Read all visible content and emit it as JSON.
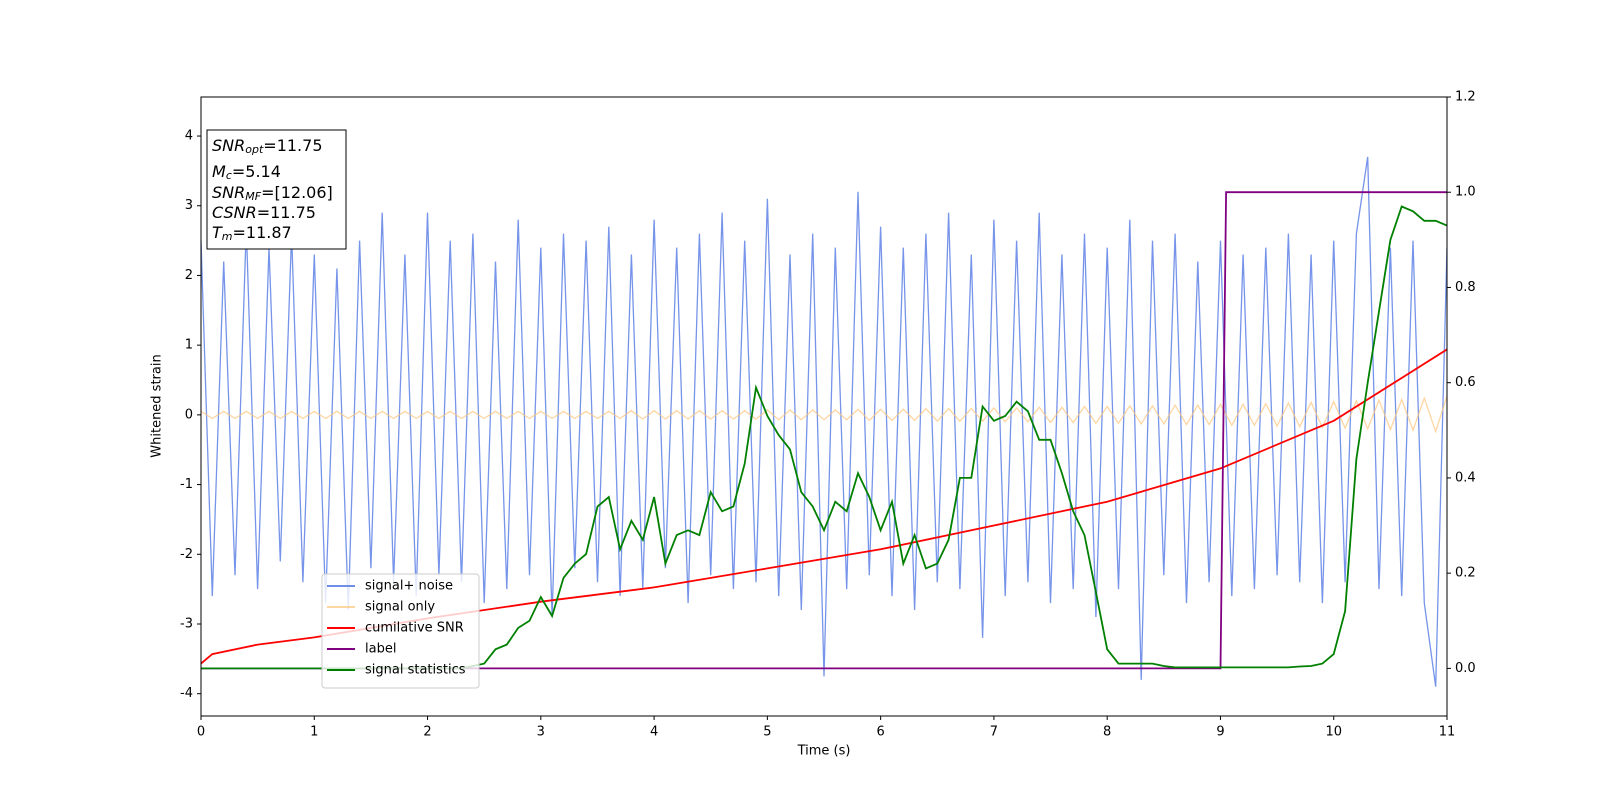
{
  "chart_data": {
    "type": "line",
    "xlabel": "Time (s)",
    "ylabel": "Whitened strain",
    "xlim": [
      0,
      11
    ],
    "xticks": [
      0,
      1,
      2,
      3,
      4,
      5,
      6,
      7,
      8,
      9,
      10,
      11
    ],
    "ylim": [
      -4.32,
      4.56
    ],
    "yticks": [
      -4,
      -3,
      -2,
      -1,
      0,
      1,
      2,
      3,
      4
    ],
    "y2lim": [
      -0.1,
      1.2
    ],
    "y2ticks": [
      {
        "value": 0,
        "label": "0.0"
      },
      0.2,
      0.4,
      0.6,
      0.8,
      {
        "value": 1,
        "label": "1.0"
      },
      1.2
    ],
    "legend": "lower left",
    "annotation": [
      {
        "base": "SNR",
        "sub": "opt",
        "rest": "=11.75"
      },
      {
        "base": "M",
        "sub": "c",
        "rest": "=5.14"
      },
      {
        "base": "SNR",
        "sub": "MF",
        "rest": "=[12.06]"
      },
      {
        "base": "CSNR",
        "sub": "",
        "rest": "=11.75"
      },
      {
        "base": "T",
        "sub": "m",
        "rest": "=11.87"
      }
    ],
    "x": [
      0,
      0.1,
      0.2,
      0.3,
      0.4,
      0.5,
      0.6,
      0.7,
      0.8,
      0.9,
      1,
      1.1,
      1.2,
      1.3,
      1.4,
      1.5,
      1.6,
      1.7,
      1.8,
      1.9,
      2,
      2.1,
      2.2,
      2.3,
      2.4,
      2.5,
      2.6,
      2.7,
      2.8,
      2.9,
      3,
      3.1,
      3.2,
      3.3,
      3.4,
      3.5,
      3.6,
      3.7,
      3.8,
      3.9,
      4,
      4.1,
      4.2,
      4.3,
      4.4,
      4.5,
      4.6,
      4.7,
      4.8,
      4.9,
      5,
      5.1,
      5.2,
      5.3,
      5.4,
      5.5,
      5.6,
      5.7,
      5.8,
      5.9,
      6,
      6.1,
      6.2,
      6.3,
      6.4,
      6.5,
      6.6,
      6.7,
      6.8,
      6.9,
      7,
      7.1,
      7.2,
      7.3,
      7.4,
      7.5,
      7.6,
      7.7,
      7.8,
      7.9,
      8,
      8.1,
      8.2,
      8.3,
      8.4,
      8.5,
      8.6,
      8.7,
      8.8,
      8.9,
      9,
      9.1,
      9.2,
      9.3,
      9.4,
      9.5,
      9.6,
      9.7,
      9.8,
      9.9,
      10,
      10.1,
      10.2,
      10.3,
      10.4,
      10.5,
      10.6,
      10.7,
      10.8,
      10.9,
      11
    ],
    "series": [
      {
        "name": "signal+ noise",
        "color": "#6f8ee8",
        "axis": "y",
        "values": [
          2.5,
          -2.6,
          2.2,
          -2.3,
          2.7,
          -2.5,
          2.4,
          -2.1,
          2.6,
          -2.4,
          2.3,
          -2.7,
          2.1,
          -2.8,
          2.5,
          -2.2,
          2.9,
          -2.4,
          2.3,
          -2.6,
          2.9,
          -2.3,
          2.5,
          -2.4,
          2.6,
          -2.7,
          2.2,
          -2.5,
          2.8,
          -2.3,
          2.4,
          -2.9,
          2.6,
          -2.2,
          2.5,
          -2.4,
          2.7,
          -2.6,
          2.3,
          -2.5,
          2.8,
          -2.2,
          2.4,
          -2.7,
          2.6,
          -2.3,
          2.9,
          -2.5,
          2.5,
          -2.4,
          3.1,
          -2.6,
          2.3,
          -2.8,
          2.6,
          -3.75,
          2.4,
          -2.5,
          3.2,
          -2.3,
          2.7,
          -2.6,
          2.4,
          -2.8,
          2.6,
          -2.4,
          2.9,
          -2.5,
          2.3,
          -3.2,
          2.8,
          -2.6,
          2.5,
          -2.4,
          2.9,
          -2.7,
          2.3,
          -2.5,
          2.6,
          -2.9,
          2.4,
          -2.5,
          2.8,
          -3.8,
          2.5,
          -2.3,
          2.6,
          -2.7,
          2.2,
          -2.4,
          2.5,
          -2.6,
          2.3,
          -2.5,
          2.4,
          -2.3,
          2.6,
          -2.4,
          2.3,
          -2.7,
          2.5,
          -2.4,
          2.6,
          3.7,
          -2.5,
          2.4,
          -2.6,
          2.5,
          -2.7,
          -3.9,
          2.4
        ]
      },
      {
        "name": "signal only",
        "color": "#fdc57a",
        "axis": "y",
        "values": [
          0.05,
          -0.05,
          0.05,
          -0.05,
          0.05,
          -0.05,
          0.05,
          -0.05,
          0.05,
          -0.05,
          0.05,
          -0.05,
          0.05,
          -0.05,
          0.05,
          -0.05,
          0.05,
          -0.05,
          0.05,
          -0.05,
          0.05,
          -0.05,
          0.05,
          -0.05,
          0.05,
          -0.05,
          0.05,
          -0.05,
          0.05,
          -0.05,
          0.05,
          -0.05,
          0.05,
          -0.05,
          0.05,
          -0.05,
          0.05,
          -0.05,
          0.06,
          -0.06,
          0.06,
          -0.06,
          0.06,
          -0.06,
          0.06,
          -0.06,
          0.06,
          -0.06,
          0.06,
          -0.06,
          0.07,
          -0.07,
          0.07,
          -0.07,
          0.07,
          -0.07,
          0.07,
          -0.07,
          0.08,
          -0.08,
          0.08,
          -0.08,
          0.08,
          -0.08,
          0.09,
          -0.09,
          0.09,
          -0.09,
          0.09,
          -0.09,
          0.1,
          -0.1,
          0.1,
          -0.1,
          0.11,
          -0.11,
          0.11,
          -0.11,
          0.12,
          -0.12,
          0.12,
          -0.12,
          0.13,
          -0.13,
          0.13,
          -0.13,
          0.14,
          -0.14,
          0.14,
          -0.14,
          0.15,
          -0.15,
          0.15,
          -0.15,
          0.16,
          -0.16,
          0.17,
          -0.17,
          0.18,
          -0.18,
          0.19,
          -0.19,
          0.2,
          -0.2,
          0.21,
          -0.21,
          0.22,
          -0.22,
          0.24,
          -0.24,
          0.27
        ]
      },
      {
        "name": "cumilative SNR",
        "color": "#ff0000",
        "axis": "y2",
        "x": [
          0,
          0.1,
          0.5,
          1,
          2,
          3,
          4,
          5,
          6,
          7,
          8,
          9,
          10,
          11
        ],
        "values": [
          0.01,
          0.03,
          0.05,
          0.065,
          0.105,
          0.14,
          0.17,
          0.21,
          0.25,
          0.3,
          0.35,
          0.42,
          0.52,
          0.67
        ]
      },
      {
        "name": "label",
        "color": "#800080",
        "axis": "y2",
        "x": [
          0,
          9,
          9.05,
          11
        ],
        "values": [
          0,
          0,
          1,
          1
        ]
      },
      {
        "name": "signal statistics",
        "color": "#008000",
        "axis": "y2",
        "values": [
          0,
          0,
          0,
          0,
          0,
          0,
          0,
          0,
          0,
          0,
          0,
          0,
          0,
          0,
          0,
          0,
          0,
          0,
          0,
          0,
          0,
          0,
          0,
          0,
          0.005,
          0.01,
          0.04,
          0.05,
          0.085,
          0.1,
          0.15,
          0.11,
          0.19,
          0.22,
          0.24,
          0.34,
          0.36,
          0.25,
          0.31,
          0.27,
          0.36,
          0.22,
          0.28,
          0.29,
          0.28,
          0.37,
          0.33,
          0.34,
          0.43,
          0.59,
          0.53,
          0.49,
          0.46,
          0.37,
          0.34,
          0.29,
          0.35,
          0.33,
          0.41,
          0.36,
          0.29,
          0.35,
          0.22,
          0.28,
          0.21,
          0.22,
          0.27,
          0.4,
          0.4,
          0.55,
          0.52,
          0.53,
          0.56,
          0.54,
          0.48,
          0.48,
          0.41,
          0.33,
          0.28,
          0.16,
          0.04,
          0.01,
          0.01,
          0.01,
          0.01,
          0.005,
          0.002,
          0.002,
          0.002,
          0.002,
          0.002,
          0.002,
          0.002,
          0.002,
          0.002,
          0.002,
          0.002,
          0.004,
          0.005,
          0.01,
          0.03,
          0.12,
          0.44,
          0.6,
          0.75,
          0.9,
          0.97,
          0.96,
          0.94,
          0.94,
          0.93
        ]
      }
    ]
  }
}
